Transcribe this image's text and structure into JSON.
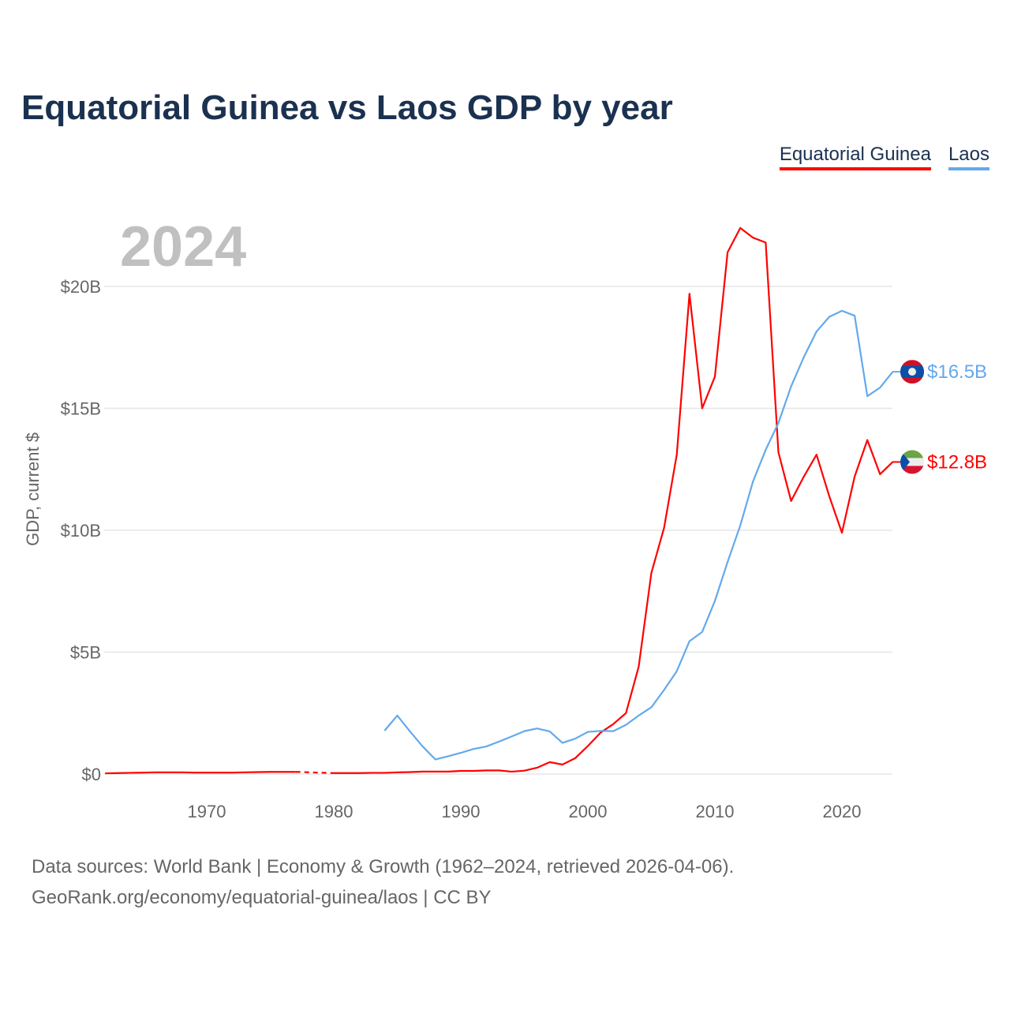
{
  "chart_data": {
    "type": "line",
    "title": "Equatorial Guinea vs Laos GDP by year",
    "ylabel": "GDP, current $",
    "xlabel": "",
    "current_year_label": "2024",
    "xlim": [
      1962,
      2024
    ],
    "ylim": [
      0,
      23
    ],
    "x_ticks": [
      1970,
      1980,
      1990,
      2000,
      2010,
      2020
    ],
    "y_ticks": [
      {
        "v": 0,
        "label": "$0"
      },
      {
        "v": 5,
        "label": "$5B"
      },
      {
        "v": 10,
        "label": "$10B"
      },
      {
        "v": 15,
        "label": "$15B"
      },
      {
        "v": 20,
        "label": "$20B"
      }
    ],
    "grid": true,
    "legend_position": "top-right",
    "units": "billions USD",
    "series": [
      {
        "name": "Equatorial Guinea",
        "color": "#ff0000",
        "end_label": "$12.8B",
        "flag": "equatorial-guinea-flag",
        "start": 1962,
        "values": [
          0.03,
          0.04,
          0.05,
          0.06,
          0.07,
          0.07,
          0.07,
          0.06,
          0.06,
          0.06,
          0.06,
          0.07,
          0.08,
          0.09,
          0.09,
          0.09,
          null,
          null,
          0.04,
          0.04,
          0.04,
          0.05,
          0.05,
          0.07,
          0.08,
          0.1,
          0.1,
          0.1,
          0.13,
          0.13,
          0.15,
          0.15,
          0.1,
          0.14,
          0.26,
          0.49,
          0.39,
          0.65,
          1.15,
          1.7,
          2.05,
          2.5,
          4.4,
          8.25,
          10.1,
          13.1,
          19.7,
          15.0,
          16.3,
          21.4,
          22.4,
          22.0,
          21.8,
          13.2,
          11.2,
          12.2,
          13.1,
          11.4,
          9.9,
          12.2,
          13.7,
          12.3,
          12.8
        ]
      },
      {
        "name": "Laos",
        "color": "#63a9ec",
        "end_label": "$16.5B",
        "flag": "laos-flag",
        "start": 1984,
        "values": [
          1.78,
          2.4,
          1.75,
          1.13,
          0.6,
          0.73,
          0.87,
          1.03,
          1.13,
          1.33,
          1.54,
          1.76,
          1.87,
          1.75,
          1.28,
          1.45,
          1.73,
          1.77,
          1.76,
          2.02,
          2.4,
          2.74,
          3.45,
          4.22,
          5.45,
          5.83,
          7.1,
          8.7,
          10.2,
          12.0,
          13.3,
          14.4,
          15.9,
          17.1,
          18.15,
          18.75,
          19.0,
          18.8,
          15.5,
          15.85,
          16.5
        ]
      }
    ]
  },
  "footer": {
    "line1": "Data sources: World Bank | Economy & Growth (1962–2024, retrieved 2026-04-06).",
    "line2": "GeoRank.org/economy/equatorial-guinea/laos | CC BY"
  }
}
